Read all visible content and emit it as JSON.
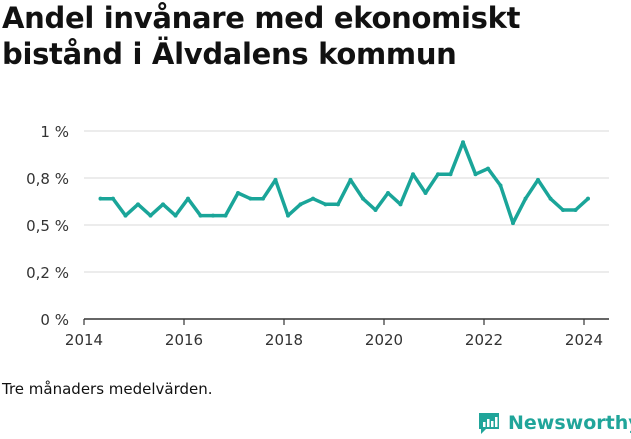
{
  "title": "Andel invånare med ekonomiskt bistånd i Älvdalens kommun",
  "footnote": "Tre månaders medelvärden.",
  "brand": {
    "name": "Newsworthy",
    "icon": "newsworthy-logo-icon",
    "color": "#20a59a"
  },
  "chart_data": {
    "type": "line",
    "title": "",
    "xlabel": "",
    "ylabel": "",
    "color": "#1aa599",
    "x_ticks": [
      "2014",
      "2016",
      "2018",
      "2020",
      "2022",
      "2024"
    ],
    "y_ticks": [
      {
        "value": 0,
        "label": "0 %"
      },
      {
        "value": 0.25,
        "label": "0,2 %"
      },
      {
        "value": 0.5,
        "label": "0,5 %"
      },
      {
        "value": 0.75,
        "label": "0,8 %"
      },
      {
        "value": 1.0,
        "label": "1 %"
      }
    ],
    "xlim": [
      2014,
      2024.5
    ],
    "ylim": [
      0,
      1.0
    ],
    "grid": true,
    "series": [
      {
        "values": [
          {
            "x": 2014.33,
            "y": 0.64
          },
          {
            "x": 2014.58,
            "y": 0.64
          },
          {
            "x": 2014.83,
            "y": 0.55
          },
          {
            "x": 2015.08,
            "y": 0.61
          },
          {
            "x": 2015.33,
            "y": 0.55
          },
          {
            "x": 2015.58,
            "y": 0.61
          },
          {
            "x": 2015.83,
            "y": 0.55
          },
          {
            "x": 2016.08,
            "y": 0.64
          },
          {
            "x": 2016.33,
            "y": 0.55
          },
          {
            "x": 2016.58,
            "y": 0.55
          },
          {
            "x": 2016.83,
            "y": 0.55
          },
          {
            "x": 2017.08,
            "y": 0.67
          },
          {
            "x": 2017.33,
            "y": 0.64
          },
          {
            "x": 2017.58,
            "y": 0.64
          },
          {
            "x": 2017.83,
            "y": 0.74
          },
          {
            "x": 2018.08,
            "y": 0.55
          },
          {
            "x": 2018.33,
            "y": 0.61
          },
          {
            "x": 2018.58,
            "y": 0.64
          },
          {
            "x": 2018.83,
            "y": 0.61
          },
          {
            "x": 2019.08,
            "y": 0.61
          },
          {
            "x": 2019.33,
            "y": 0.74
          },
          {
            "x": 2019.58,
            "y": 0.64
          },
          {
            "x": 2019.83,
            "y": 0.58
          },
          {
            "x": 2020.08,
            "y": 0.67
          },
          {
            "x": 2020.33,
            "y": 0.61
          },
          {
            "x": 2020.58,
            "y": 0.77
          },
          {
            "x": 2020.83,
            "y": 0.67
          },
          {
            "x": 2021.08,
            "y": 0.77
          },
          {
            "x": 2021.33,
            "y": 0.77
          },
          {
            "x": 2021.58,
            "y": 0.94
          },
          {
            "x": 2021.83,
            "y": 0.77
          },
          {
            "x": 2022.08,
            "y": 0.8
          },
          {
            "x": 2022.33,
            "y": 0.71
          },
          {
            "x": 2022.58,
            "y": 0.51
          },
          {
            "x": 2022.83,
            "y": 0.64
          },
          {
            "x": 2023.08,
            "y": 0.74
          },
          {
            "x": 2023.33,
            "y": 0.64
          },
          {
            "x": 2023.58,
            "y": 0.58
          },
          {
            "x": 2023.83,
            "y": 0.58
          },
          {
            "x": 2024.08,
            "y": 0.64
          }
        ]
      }
    ]
  }
}
